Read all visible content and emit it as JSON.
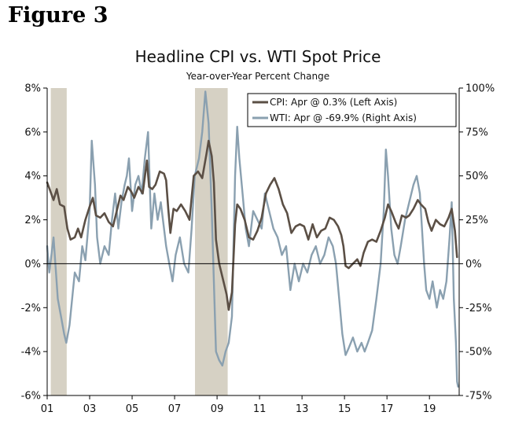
{
  "figure_label": "Figure 3",
  "chart_data": {
    "type": "line",
    "title": "Headline CPI vs. WTI Spot Price",
    "subtitle": "Year-over-Year Percent Change",
    "x_range": [
      2001,
      2020.4
    ],
    "x_tick_values": [
      2001,
      2003,
      2005,
      2007,
      2009,
      2011,
      2013,
      2015,
      2017,
      2019
    ],
    "x_tick_labels": [
      "01",
      "03",
      "05",
      "07",
      "09",
      "11",
      "13",
      "15",
      "17",
      "19"
    ],
    "y_left": {
      "range": [
        -6,
        8
      ],
      "ticks": [
        -6,
        -4,
        -2,
        0,
        2,
        4,
        6,
        8
      ],
      "tick_labels": [
        "-6%",
        "-4%",
        "-2%",
        "0%",
        "2%",
        "4%",
        "6%",
        "8%"
      ]
    },
    "y_right": {
      "range": [
        -75,
        100
      ],
      "ticks": [
        -75,
        -50,
        -25,
        0,
        25,
        50,
        75,
        100
      ],
      "tick_labels": [
        "-75%",
        "-50%",
        "-25%",
        "0%",
        "25%",
        "50%",
        "75%",
        "100%"
      ]
    },
    "recessions": [
      [
        2001.17,
        2001.92
      ],
      [
        2007.96,
        2009.5
      ]
    ],
    "colors": {
      "cpi": "#5b4f45",
      "wti": "#8aa0b0",
      "recession": "#d6d1c4",
      "axis": "#000000"
    },
    "legend": {
      "position": "top-right"
    },
    "series": [
      {
        "name": "CPI: Apr @ 0.3% (Left Axis)",
        "axis": "left",
        "points": [
          [
            2001.0,
            3.7
          ],
          [
            2001.15,
            3.3
          ],
          [
            2001.3,
            2.9
          ],
          [
            2001.45,
            3.4
          ],
          [
            2001.6,
            2.7
          ],
          [
            2001.8,
            2.6
          ],
          [
            2001.95,
            1.6
          ],
          [
            2002.1,
            1.1
          ],
          [
            2002.3,
            1.2
          ],
          [
            2002.45,
            1.6
          ],
          [
            2002.6,
            1.2
          ],
          [
            2002.8,
            2.0
          ],
          [
            2003.0,
            2.6
          ],
          [
            2003.15,
            3.0
          ],
          [
            2003.3,
            2.2
          ],
          [
            2003.5,
            2.1
          ],
          [
            2003.7,
            2.3
          ],
          [
            2003.9,
            1.9
          ],
          [
            2004.1,
            1.7
          ],
          [
            2004.25,
            2.3
          ],
          [
            2004.45,
            3.1
          ],
          [
            2004.6,
            2.9
          ],
          [
            2004.8,
            3.5
          ],
          [
            2004.95,
            3.3
          ],
          [
            2005.1,
            3.0
          ],
          [
            2005.3,
            3.5
          ],
          [
            2005.5,
            3.2
          ],
          [
            2005.7,
            4.7
          ],
          [
            2005.8,
            3.5
          ],
          [
            2005.95,
            3.4
          ],
          [
            2006.1,
            3.6
          ],
          [
            2006.3,
            4.2
          ],
          [
            2006.5,
            4.1
          ],
          [
            2006.6,
            3.8
          ],
          [
            2006.7,
            2.5
          ],
          [
            2006.8,
            1.4
          ],
          [
            2006.95,
            2.5
          ],
          [
            2007.1,
            2.4
          ],
          [
            2007.3,
            2.7
          ],
          [
            2007.5,
            2.4
          ],
          [
            2007.7,
            2.0
          ],
          [
            2007.9,
            4.0
          ],
          [
            2008.1,
            4.2
          ],
          [
            2008.3,
            3.9
          ],
          [
            2008.5,
            5.0
          ],
          [
            2008.6,
            5.6
          ],
          [
            2008.75,
            4.9
          ],
          [
            2008.85,
            3.7
          ],
          [
            2008.95,
            1.1
          ],
          [
            2009.1,
            0.0
          ],
          [
            2009.3,
            -0.8
          ],
          [
            2009.45,
            -1.4
          ],
          [
            2009.55,
            -2.1
          ],
          [
            2009.7,
            -1.3
          ],
          [
            2009.85,
            1.8
          ],
          [
            2009.95,
            2.7
          ],
          [
            2010.1,
            2.5
          ],
          [
            2010.3,
            2.0
          ],
          [
            2010.5,
            1.2
          ],
          [
            2010.7,
            1.1
          ],
          [
            2010.9,
            1.5
          ],
          [
            2011.1,
            2.1
          ],
          [
            2011.3,
            3.2
          ],
          [
            2011.5,
            3.6
          ],
          [
            2011.7,
            3.9
          ],
          [
            2011.9,
            3.4
          ],
          [
            2012.1,
            2.7
          ],
          [
            2012.3,
            2.3
          ],
          [
            2012.5,
            1.4
          ],
          [
            2012.7,
            1.7
          ],
          [
            2012.9,
            1.8
          ],
          [
            2013.1,
            1.7
          ],
          [
            2013.3,
            1.1
          ],
          [
            2013.5,
            1.8
          ],
          [
            2013.7,
            1.2
          ],
          [
            2013.9,
            1.5
          ],
          [
            2014.1,
            1.6
          ],
          [
            2014.3,
            2.1
          ],
          [
            2014.5,
            2.0
          ],
          [
            2014.7,
            1.7
          ],
          [
            2014.85,
            1.3
          ],
          [
            2014.95,
            0.8
          ],
          [
            2015.05,
            -0.1
          ],
          [
            2015.2,
            -0.2
          ],
          [
            2015.4,
            0.0
          ],
          [
            2015.6,
            0.2
          ],
          [
            2015.75,
            -0.1
          ],
          [
            2015.9,
            0.5
          ],
          [
            2016.1,
            1.0
          ],
          [
            2016.3,
            1.1
          ],
          [
            2016.5,
            1.0
          ],
          [
            2016.7,
            1.5
          ],
          [
            2016.9,
            2.1
          ],
          [
            2017.05,
            2.7
          ],
          [
            2017.2,
            2.4
          ],
          [
            2017.4,
            1.9
          ],
          [
            2017.55,
            1.6
          ],
          [
            2017.7,
            2.2
          ],
          [
            2017.9,
            2.1
          ],
          [
            2018.05,
            2.2
          ],
          [
            2018.25,
            2.5
          ],
          [
            2018.45,
            2.9
          ],
          [
            2018.6,
            2.7
          ],
          [
            2018.8,
            2.5
          ],
          [
            2018.95,
            1.9
          ],
          [
            2019.1,
            1.5
          ],
          [
            2019.3,
            2.0
          ],
          [
            2019.5,
            1.8
          ],
          [
            2019.7,
            1.7
          ],
          [
            2019.9,
            2.1
          ],
          [
            2020.05,
            2.5
          ],
          [
            2020.2,
            1.5
          ],
          [
            2020.3,
            0.3
          ]
        ]
      },
      {
        "name": "WTI: Apr @ -69.9% (Right Axis)",
        "axis": "right",
        "points": [
          [
            2001.0,
            10
          ],
          [
            2001.1,
            -5
          ],
          [
            2001.3,
            15
          ],
          [
            2001.5,
            -20
          ],
          [
            2001.65,
            -30
          ],
          [
            2001.8,
            -40
          ],
          [
            2001.9,
            -45
          ],
          [
            2002.05,
            -35
          ],
          [
            2002.3,
            -5
          ],
          [
            2002.5,
            -10
          ],
          [
            2002.65,
            10
          ],
          [
            2002.8,
            2
          ],
          [
            2003.0,
            30
          ],
          [
            2003.1,
            70
          ],
          [
            2003.25,
            45
          ],
          [
            2003.35,
            15
          ],
          [
            2003.5,
            0
          ],
          [
            2003.7,
            10
          ],
          [
            2003.9,
            5
          ],
          [
            2004.05,
            25
          ],
          [
            2004.2,
            40
          ],
          [
            2004.35,
            20
          ],
          [
            2004.5,
            35
          ],
          [
            2004.65,
            45
          ],
          [
            2004.75,
            50
          ],
          [
            2004.85,
            60
          ],
          [
            2005.0,
            30
          ],
          [
            2005.15,
            45
          ],
          [
            2005.3,
            50
          ],
          [
            2005.45,
            40
          ],
          [
            2005.6,
            60
          ],
          [
            2005.75,
            75
          ],
          [
            2005.9,
            20
          ],
          [
            2006.05,
            40
          ],
          [
            2006.2,
            25
          ],
          [
            2006.35,
            35
          ],
          [
            2006.5,
            20
          ],
          [
            2006.6,
            10
          ],
          [
            2006.75,
            0
          ],
          [
            2006.9,
            -10
          ],
          [
            2007.05,
            5
          ],
          [
            2007.25,
            15
          ],
          [
            2007.45,
            0
          ],
          [
            2007.65,
            -5
          ],
          [
            2007.8,
            20
          ],
          [
            2007.95,
            50
          ],
          [
            2008.15,
            60
          ],
          [
            2008.3,
            75
          ],
          [
            2008.45,
            98
          ],
          [
            2008.6,
            80
          ],
          [
            2008.75,
            30
          ],
          [
            2008.85,
            -10
          ],
          [
            2008.95,
            -50
          ],
          [
            2009.1,
            -55
          ],
          [
            2009.25,
            -58
          ],
          [
            2009.4,
            -50
          ],
          [
            2009.55,
            -45
          ],
          [
            2009.7,
            -30
          ],
          [
            2009.85,
            50
          ],
          [
            2009.95,
            78
          ],
          [
            2010.05,
            60
          ],
          [
            2010.2,
            40
          ],
          [
            2010.35,
            20
          ],
          [
            2010.5,
            10
          ],
          [
            2010.7,
            30
          ],
          [
            2010.9,
            25
          ],
          [
            2011.1,
            20
          ],
          [
            2011.25,
            40
          ],
          [
            2011.45,
            30
          ],
          [
            2011.65,
            20
          ],
          [
            2011.85,
            15
          ],
          [
            2012.05,
            5
          ],
          [
            2012.25,
            10
          ],
          [
            2012.45,
            -15
          ],
          [
            2012.65,
            0
          ],
          [
            2012.85,
            -10
          ],
          [
            2013.05,
            0
          ],
          [
            2013.25,
            -5
          ],
          [
            2013.45,
            5
          ],
          [
            2013.65,
            10
          ],
          [
            2013.85,
            0
          ],
          [
            2014.05,
            5
          ],
          [
            2014.25,
            15
          ],
          [
            2014.45,
            10
          ],
          [
            2014.6,
            0
          ],
          [
            2014.75,
            -20
          ],
          [
            2014.9,
            -40
          ],
          [
            2015.05,
            -52
          ],
          [
            2015.2,
            -48
          ],
          [
            2015.4,
            -42
          ],
          [
            2015.6,
            -50
          ],
          [
            2015.8,
            -45
          ],
          [
            2015.95,
            -50
          ],
          [
            2016.1,
            -45
          ],
          [
            2016.3,
            -38
          ],
          [
            2016.5,
            -20
          ],
          [
            2016.7,
            0
          ],
          [
            2016.85,
            30
          ],
          [
            2016.95,
            65
          ],
          [
            2017.05,
            50
          ],
          [
            2017.2,
            20
          ],
          [
            2017.35,
            5
          ],
          [
            2017.5,
            0
          ],
          [
            2017.65,
            10
          ],
          [
            2017.85,
            25
          ],
          [
            2018.05,
            35
          ],
          [
            2018.25,
            45
          ],
          [
            2018.4,
            50
          ],
          [
            2018.55,
            40
          ],
          [
            2018.65,
            20
          ],
          [
            2018.75,
            0
          ],
          [
            2018.85,
            -15
          ],
          [
            2019.0,
            -20
          ],
          [
            2019.15,
            -10
          ],
          [
            2019.35,
            -25
          ],
          [
            2019.5,
            -15
          ],
          [
            2019.65,
            -20
          ],
          [
            2019.8,
            -10
          ],
          [
            2019.95,
            15
          ],
          [
            2020.05,
            35
          ],
          [
            2020.15,
            -20
          ],
          [
            2020.25,
            -45
          ],
          [
            2020.3,
            -67
          ],
          [
            2020.35,
            -70
          ]
        ]
      }
    ]
  }
}
